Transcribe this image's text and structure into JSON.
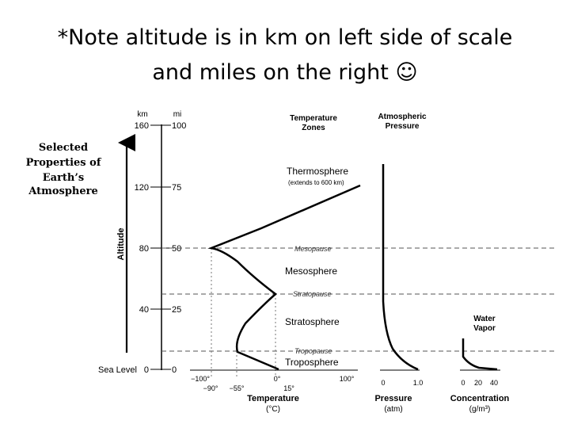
{
  "slide": {
    "title_line1": "*Note altitude is in km on left side of scale",
    "title_line2": "and miles on the right ☺"
  },
  "diagram": {
    "side_title": [
      "Selected",
      "Properties of",
      "Earth’s",
      "Atmosphere"
    ],
    "axis_label": "Altitude",
    "km_label": "km",
    "mi_label": "mi",
    "km_ticks": [
      "160",
      "120",
      "80",
      "40",
      "0"
    ],
    "mi_ticks": [
      "100",
      "75",
      "50",
      "25",
      "0"
    ],
    "sea_level": "Sea Level",
    "temp_zones_header": [
      "Temperature",
      "Zones"
    ],
    "pressure_header": [
      "Atmospheric",
      "Pressure"
    ],
    "zones": {
      "thermosphere": "Thermosphere",
      "thermosphere_note": "(extends to 600 km)",
      "mesopause": "Mesopause",
      "mesosphere": "Mesosphere",
      "stratopause": "Stratopause",
      "stratosphere": "Stratosphere",
      "tropopause": "Tropopause",
      "troposphere": "Troposphere"
    },
    "temp_ticks_top": [
      "−100°",
      "0°",
      "100°"
    ],
    "temp_ticks_bottom": [
      "−90°",
      "−55°",
      "15°"
    ],
    "temp_label": [
      "Temperature",
      "(°C)"
    ],
    "pressure_ticks": [
      "0",
      "1.0"
    ],
    "pressure_label": [
      "Pressure",
      "(atm)"
    ],
    "water_vapor": [
      "Water",
      "Vapor"
    ],
    "conc_ticks": [
      "0",
      "20",
      "40"
    ],
    "conc_label": [
      "Concentration",
      "(g/m³)"
    ]
  }
}
